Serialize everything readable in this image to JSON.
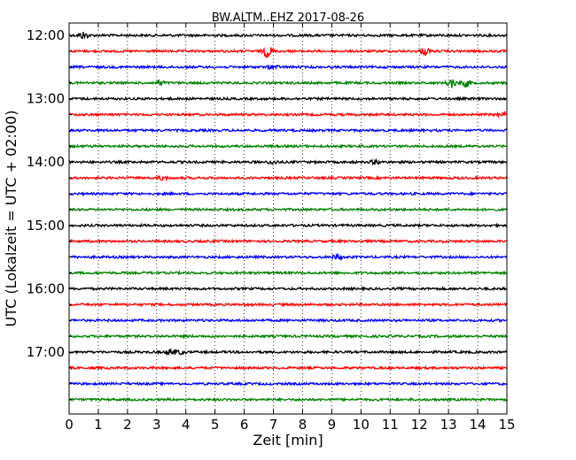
{
  "chart_data": {
    "type": "line",
    "title": "BW.ALTM..EHZ 2017-08-26",
    "xlabel": "Zeit  [min]",
    "ylabel": "UTC (Lokalzeit = UTC + 02:00)",
    "xlim": [
      0,
      15
    ],
    "x_ticks": [
      "0",
      "1",
      "2",
      "3",
      "4",
      "5",
      "6",
      "7",
      "8",
      "9",
      "10",
      "11",
      "12",
      "13",
      "14",
      "15"
    ],
    "y_tick_labels": [
      "12:00",
      "13:00",
      "14:00",
      "15:00",
      "16:00",
      "17:00"
    ],
    "grid": "vertical dotted",
    "trace_colors": [
      "#000000",
      "#ff0000",
      "#0000ff",
      "#008000"
    ],
    "series": [
      {
        "start": "12:00",
        "color": "#000000",
        "events": [
          {
            "t": 0.5,
            "amp": 4
          }
        ]
      },
      {
        "start": "12:15",
        "color": "#ff0000",
        "events": [
          {
            "t": 6.8,
            "amp": 7
          },
          {
            "t": 12.2,
            "amp": 4
          }
        ]
      },
      {
        "start": "12:30",
        "color": "#0000ff",
        "events": [
          {
            "t": 7.0,
            "amp": 2
          }
        ]
      },
      {
        "start": "12:45",
        "color": "#008000",
        "events": [
          {
            "t": 3.1,
            "amp": 3
          },
          {
            "t": 13.1,
            "amp": 5
          },
          {
            "t": 13.6,
            "amp": 4
          }
        ]
      },
      {
        "start": "13:00",
        "color": "#000000",
        "events": []
      },
      {
        "start": "13:15",
        "color": "#ff0000",
        "events": [
          {
            "t": 14.9,
            "amp": 3
          }
        ]
      },
      {
        "start": "13:30",
        "color": "#0000ff",
        "events": []
      },
      {
        "start": "13:45",
        "color": "#008000",
        "events": []
      },
      {
        "start": "14:00",
        "color": "#000000",
        "events": [
          {
            "t": 7.0,
            "amp": 2
          },
          {
            "t": 10.5,
            "amp": 2
          }
        ]
      },
      {
        "start": "14:15",
        "color": "#ff0000",
        "events": [
          {
            "t": 3.2,
            "amp": 2
          }
        ]
      },
      {
        "start": "14:30",
        "color": "#0000ff",
        "events": []
      },
      {
        "start": "14:45",
        "color": "#008000",
        "events": []
      },
      {
        "start": "15:00",
        "color": "#000000",
        "events": []
      },
      {
        "start": "15:15",
        "color": "#ff0000",
        "events": []
      },
      {
        "start": "15:30",
        "color": "#0000ff",
        "events": [
          {
            "t": 9.2,
            "amp": 3
          }
        ]
      },
      {
        "start": "15:45",
        "color": "#008000",
        "events": []
      },
      {
        "start": "16:00",
        "color": "#000000",
        "events": []
      },
      {
        "start": "16:15",
        "color": "#ff0000",
        "events": []
      },
      {
        "start": "16:30",
        "color": "#0000ff",
        "events": []
      },
      {
        "start": "16:45",
        "color": "#008000",
        "events": []
      },
      {
        "start": "17:00",
        "color": "#000000",
        "events": [
          {
            "t": 3.5,
            "amp": 3
          },
          {
            "t": 3.8,
            "amp": 2
          }
        ]
      },
      {
        "start": "17:15",
        "color": "#ff0000",
        "events": []
      },
      {
        "start": "17:30",
        "color": "#0000ff",
        "events": []
      },
      {
        "start": "17:45",
        "color": "#008000",
        "events": []
      }
    ]
  }
}
